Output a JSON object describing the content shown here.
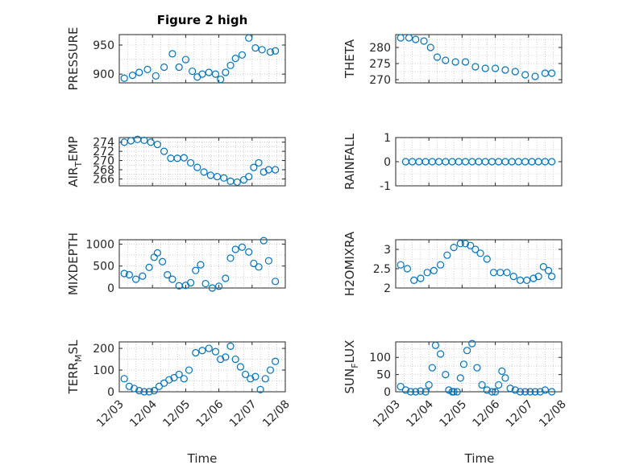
{
  "figure": {
    "title": "Figure 2 high",
    "marker_color": "#0072BD",
    "x_ticks": [
      {
        "label": "12/03",
        "day": 0
      },
      {
        "label": "12/04",
        "day": 1
      },
      {
        "label": "12/05",
        "day": 2
      },
      {
        "label": "12/06",
        "day": 3
      },
      {
        "label": "12/07",
        "day": 4
      },
      {
        "label": "12/08",
        "day": 5
      }
    ],
    "x_axis_label": "Time"
  },
  "chart_data": [
    {
      "type": "scatter",
      "ylabel": "PRESSURE",
      "ylim": [
        885,
        968
      ],
      "yticks": [
        900,
        950
      ],
      "grid": true,
      "x": [
        0.15,
        0.4,
        0.6,
        0.85,
        1.1,
        1.35,
        1.6,
        1.8,
        2.0,
        2.2,
        2.35,
        2.5,
        2.7,
        2.9,
        3.05,
        3.2,
        3.35,
        3.5,
        3.7,
        3.9,
        4.1,
        4.3,
        4.55,
        4.7
      ],
      "y": [
        893,
        898,
        903,
        908,
        897,
        912,
        935,
        912,
        925,
        905,
        895,
        900,
        903,
        900,
        891,
        903,
        915,
        927,
        933,
        962,
        945,
        942,
        938,
        940
      ]
    },
    {
      "type": "scatter",
      "ylabel": "THETA",
      "ylim": [
        269,
        284
      ],
      "yticks": [
        270,
        275,
        280
      ],
      "grid": true,
      "x": [
        0.15,
        0.4,
        0.6,
        0.85,
        1.05,
        1.25,
        1.5,
        1.8,
        2.1,
        2.4,
        2.7,
        3.0,
        3.3,
        3.6,
        3.9,
        4.2,
        4.5,
        4.7
      ],
      "y": [
        283,
        283,
        282.5,
        282,
        280,
        277,
        276,
        275.5,
        275.5,
        274,
        273.5,
        273.5,
        273,
        272.5,
        271.5,
        271,
        272,
        272
      ]
    },
    {
      "type": "scatter",
      "ylabel": "AIR_TEMP",
      "ylim": [
        264.5,
        275
      ],
      "yticks": [
        266,
        268,
        270,
        272,
        274
      ],
      "grid": true,
      "x": [
        0.15,
        0.35,
        0.55,
        0.75,
        0.95,
        1.15,
        1.35,
        1.55,
        1.75,
        1.95,
        2.15,
        2.35,
        2.55,
        2.75,
        2.95,
        3.15,
        3.35,
        3.55,
        3.75,
        3.9,
        4.05,
        4.2,
        4.35,
        4.5,
        4.7
      ],
      "y": [
        274,
        274.3,
        274.6,
        274.4,
        274,
        273.5,
        272,
        270.5,
        270.5,
        270.6,
        269.5,
        268.5,
        267.5,
        266.8,
        266.5,
        266.2,
        265.5,
        265.3,
        265.8,
        266.5,
        268.5,
        269.5,
        267.5,
        268,
        268
      ]
    },
    {
      "type": "scatter",
      "ylabel": "RAINFALL",
      "ylim": [
        -1,
        1
      ],
      "yticks": [
        -1,
        0,
        1
      ],
      "grid": true,
      "x": [
        0.3,
        0.5,
        0.7,
        0.9,
        1.1,
        1.3,
        1.5,
        1.7,
        1.9,
        2.1,
        2.3,
        2.5,
        2.7,
        2.9,
        3.1,
        3.3,
        3.5,
        3.7,
        3.9,
        4.1,
        4.3,
        4.5,
        4.7
      ],
      "y": [
        0,
        0,
        0,
        0,
        0,
        0,
        0,
        0,
        0,
        0,
        0,
        0,
        0,
        0,
        0,
        0,
        0,
        0,
        0,
        0,
        0,
        0,
        0
      ]
    },
    {
      "type": "scatter",
      "ylabel": "MIXDEPTH",
      "ylim": [
        0,
        1100
      ],
      "yticks": [
        0,
        500,
        1000
      ],
      "grid": true,
      "x": [
        0.15,
        0.3,
        0.5,
        0.7,
        0.9,
        1.05,
        1.15,
        1.3,
        1.45,
        1.6,
        1.8,
        2.0,
        2.15,
        2.3,
        2.45,
        2.6,
        2.8,
        3.0,
        3.2,
        3.35,
        3.5,
        3.7,
        3.9,
        4.05,
        4.2,
        4.35,
        4.5,
        4.7
      ],
      "y": [
        330,
        300,
        200,
        270,
        470,
        700,
        800,
        600,
        300,
        200,
        50,
        60,
        120,
        400,
        530,
        100,
        0,
        40,
        220,
        680,
        880,
        930,
        820,
        560,
        480,
        1080,
        620,
        150
      ]
    },
    {
      "type": "scatter",
      "ylabel": "H2OMIXRA",
      "ylim": [
        2,
        3.25
      ],
      "yticks": [
        2,
        2.5,
        3
      ],
      "grid": true,
      "x": [
        0.15,
        0.35,
        0.55,
        0.75,
        0.95,
        1.15,
        1.35,
        1.55,
        1.75,
        1.95,
        2.1,
        2.25,
        2.4,
        2.55,
        2.75,
        2.95,
        3.15,
        3.35,
        3.55,
        3.75,
        3.95,
        4.15,
        4.3,
        4.45,
        4.6,
        4.7
      ],
      "y": [
        2.6,
        2.5,
        2.2,
        2.25,
        2.4,
        2.45,
        2.6,
        2.85,
        3.05,
        3.15,
        3.15,
        3.1,
        3.0,
        2.9,
        2.75,
        2.4,
        2.4,
        2.4,
        2.3,
        2.2,
        2.2,
        2.25,
        2.3,
        2.55,
        2.45,
        2.3
      ]
    },
    {
      "type": "scatter",
      "ylabel": "TERR_MSL",
      "ylim": [
        0,
        230
      ],
      "yticks": [
        0,
        100,
        200
      ],
      "grid": true,
      "x": [
        0.15,
        0.3,
        0.45,
        0.6,
        0.75,
        0.9,
        1.05,
        1.2,
        1.35,
        1.5,
        1.65,
        1.8,
        1.95,
        2.1,
        2.3,
        2.5,
        2.7,
        2.9,
        3.05,
        3.2,
        3.35,
        3.5,
        3.65,
        3.8,
        3.95,
        4.1,
        4.25,
        4.4,
        4.55,
        4.7
      ],
      "y": [
        60,
        25,
        15,
        5,
        0,
        0,
        5,
        25,
        40,
        55,
        65,
        80,
        60,
        100,
        180,
        190,
        200,
        185,
        150,
        160,
        210,
        150,
        115,
        80,
        60,
        70,
        10,
        60,
        100,
        140
      ]
    },
    {
      "type": "scatter",
      "ylabel": "SUN_FLUX",
      "ylim": [
        0,
        145
      ],
      "yticks": [
        0,
        50,
        100
      ],
      "grid": true,
      "x": [
        0.15,
        0.3,
        0.45,
        0.6,
        0.75,
        0.9,
        1.0,
        1.1,
        1.2,
        1.35,
        1.5,
        1.6,
        1.7,
        1.75,
        1.85,
        1.95,
        2.05,
        2.15,
        2.3,
        2.45,
        2.6,
        2.75,
        2.9,
        3.0,
        3.1,
        3.2,
        3.3,
        3.45,
        3.6,
        3.75,
        3.9,
        4.05,
        4.2,
        4.35,
        4.5,
        4.7
      ],
      "y": [
        15,
        5,
        0,
        0,
        2,
        0,
        20,
        70,
        135,
        110,
        50,
        5,
        0,
        0,
        0,
        40,
        80,
        120,
        140,
        70,
        20,
        5,
        0,
        0,
        20,
        60,
        40,
        10,
        5,
        0,
        0,
        0,
        0,
        0,
        5,
        0
      ]
    }
  ]
}
